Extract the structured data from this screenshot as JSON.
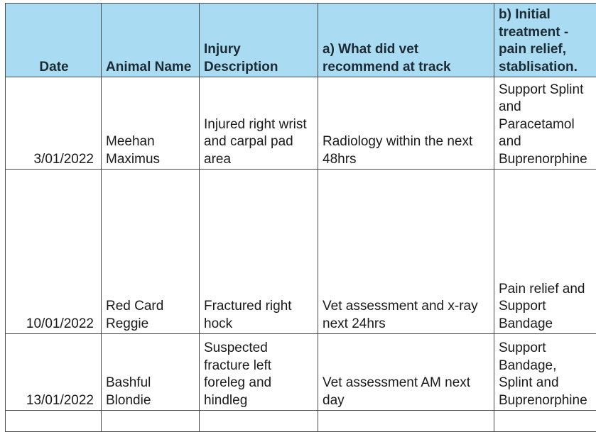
{
  "headers": [
    "Date",
    "Animal Name",
    "Injury Description",
    "a) What did vet recommend at track",
    "b) Initial treatment - pain relief, stablisation."
  ],
  "header_lines": {
    "b": [
      "b) Initial",
      "treatment -",
      "pain relief,",
      "stablisation."
    ]
  },
  "rows": [
    {
      "date": "3/01/2022",
      "animal": "Meehan Maximus",
      "injury": "Injured right wrist and carpal pad area",
      "vet_recommendation": "Radiology within the next 48hrs",
      "treatment_lines": [
        "Support Splint",
        "and",
        "Paracetamol",
        "and",
        "Buprenorphine"
      ]
    },
    {
      "date": "10/01/2022",
      "animal": "Red Card Reggie",
      "injury": "Fractured right hock",
      "vet_recommendation": "Vet assessment and x-ray next 24hrs",
      "treatment_lines": [
        "Pain relief and",
        "Support",
        "Bandage"
      ]
    },
    {
      "date": "13/01/2022",
      "animal": "Bashful Blondie",
      "injury": "Suspected fracture left foreleg and hindleg",
      "vet_recommendation": "Vet assessment AM next day",
      "treatment_lines": [
        "Support",
        "Bandage,",
        "Splint and",
        "Buprenorphine"
      ]
    }
  ],
  "colors": {
    "header_bg": "#a9dcf2",
    "border": "#4a4a4a"
  }
}
